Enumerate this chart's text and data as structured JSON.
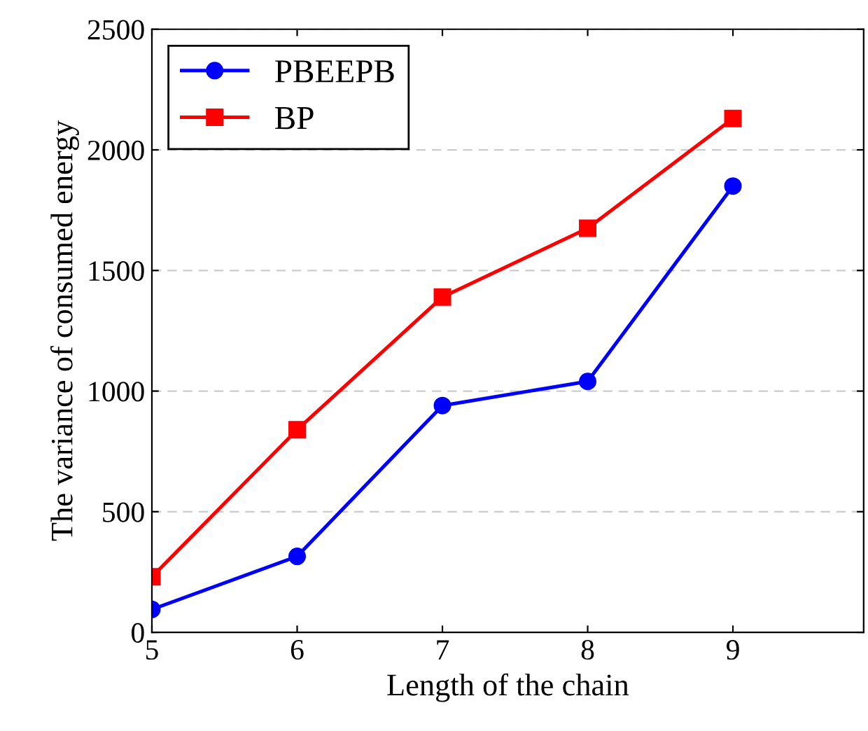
{
  "chart_data": {
    "type": "line",
    "xlabel": "Length of the chain",
    "ylabel": "The variance of consumed energy",
    "x": [
      5,
      6,
      7,
      8,
      9
    ],
    "series": [
      {
        "name": "PBEEPB",
        "color": "#0000ff",
        "marker": "circle",
        "values": [
          95,
          315,
          940,
          1040,
          1850
        ]
      },
      {
        "name": "BP",
        "color": "#ff0000",
        "marker": "square",
        "values": [
          230,
          840,
          1390,
          1675,
          2130
        ]
      }
    ],
    "xlim": [
      5,
      9.9
    ],
    "xticks": [
      5,
      6,
      7,
      8,
      9
    ],
    "ylim": [
      0,
      2500
    ],
    "yticks": [
      0,
      500,
      1000,
      1500,
      2000,
      2500
    ],
    "grid": "y",
    "legend": "top left",
    "line_style": "solid"
  }
}
